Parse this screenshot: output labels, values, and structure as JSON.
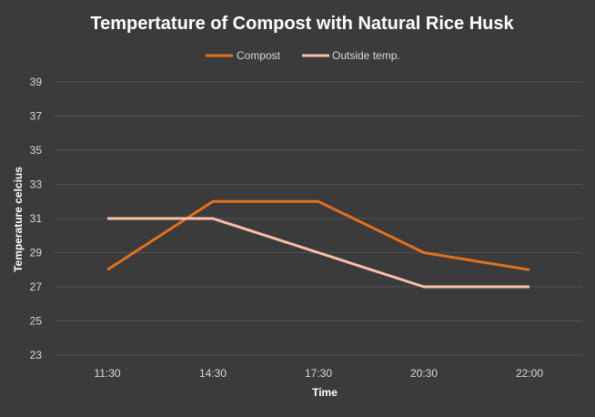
{
  "chart_data": {
    "type": "line",
    "title": "Tempertature of Compost with Natural Rice Husk",
    "xlabel": "Time",
    "ylabel": "Temperature celcius",
    "categories": [
      "11:30",
      "14:30",
      "17:30",
      "20:30",
      "22:00"
    ],
    "ylim": [
      23,
      39
    ],
    "yticks": [
      23,
      25,
      27,
      29,
      31,
      33,
      35,
      37,
      39
    ],
    "grid": true,
    "legend": "top",
    "series": [
      {
        "name": "Compost",
        "values": [
          28,
          32,
          32,
          29,
          28
        ],
        "color": "#e07020"
      },
      {
        "name": "Outside temp.",
        "values": [
          31,
          31,
          29,
          27,
          27
        ],
        "color": "#f8c0a8"
      }
    ]
  }
}
